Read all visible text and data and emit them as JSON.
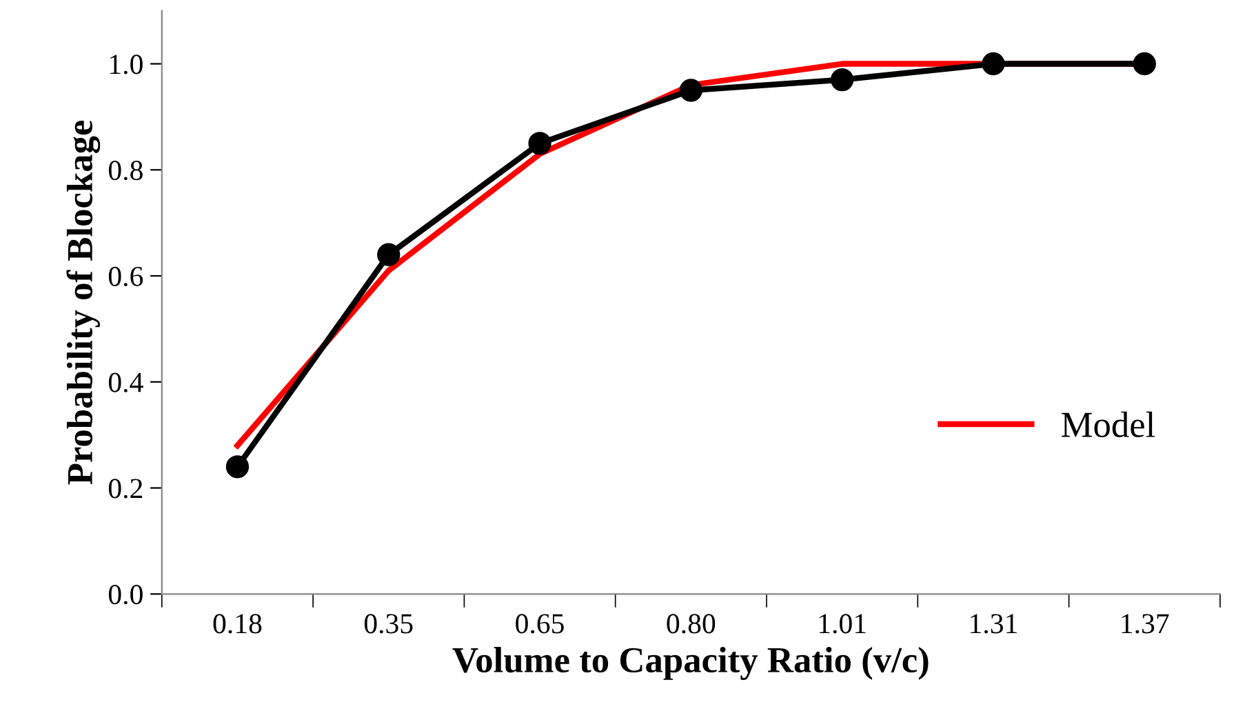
{
  "chart_data": {
    "type": "line",
    "xlabel": "Volume to Capacity Ratio (v/c)",
    "ylabel": "Probability of Blockage",
    "categories": [
      "0.18",
      "0.35",
      "0.65",
      "0.80",
      "1.01",
      "1.31",
      "1.37"
    ],
    "series": [
      {
        "name": "Model",
        "color": "#ff0000",
        "marker": "none",
        "values": [
          0.28,
          0.61,
          0.83,
          0.96,
          1.0,
          1.0,
          1.0
        ]
      },
      {
        "color": "#000000",
        "marker": "circle",
        "values": [
          0.24,
          0.64,
          0.85,
          0.95,
          0.97,
          1.0,
          1.0
        ]
      }
    ],
    "ylim": [
      0,
      1.1
    ],
    "yticks": [
      {
        "value": 0,
        "label": "0.0"
      },
      0.2,
      0.4,
      0.6,
      0.8,
      {
        "value": 1,
        "label": "1.0"
      }
    ],
    "grid": false,
    "legend": "bottom right",
    "line_style": "solid"
  }
}
